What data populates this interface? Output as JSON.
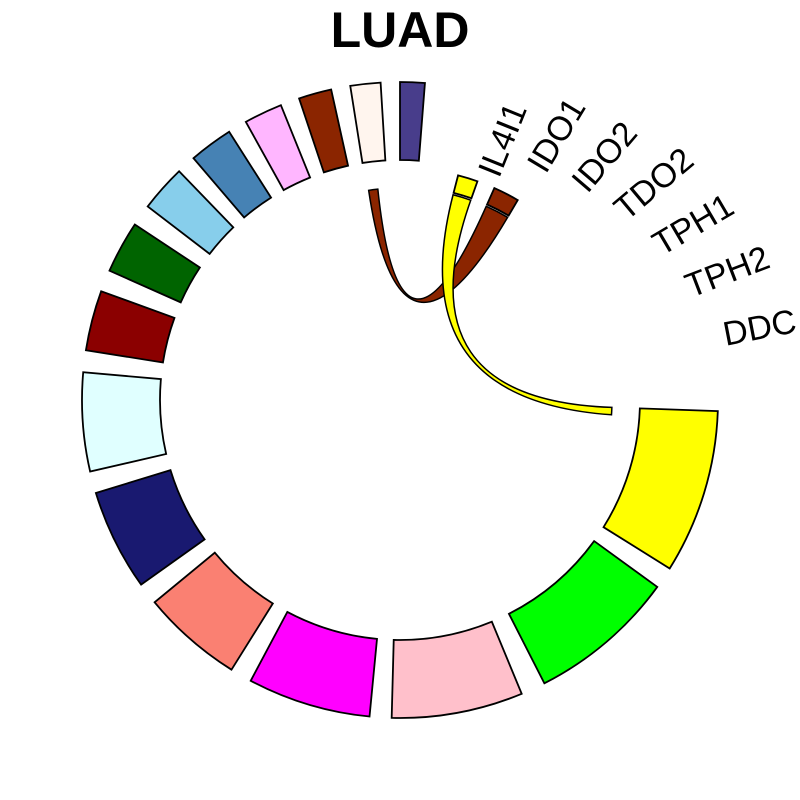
{
  "title": "LUAD",
  "sectors": [
    {
      "label": "",
      "color": "#483D8B"
    },
    {
      "label": "",
      "color": "#FFF5EE"
    },
    {
      "label": "",
      "color": "#8B2500"
    },
    {
      "label": "",
      "color": "#FFB6FF"
    },
    {
      "label": "",
      "color": "#4682B4"
    },
    {
      "label": "",
      "color": "#87CEEB"
    },
    {
      "label": "",
      "color": "#006400"
    },
    {
      "label": "",
      "color": "#8B0000"
    },
    {
      "label": "",
      "color": "#E0FFFF"
    },
    {
      "label": "",
      "color": "#191970"
    },
    {
      "label": "",
      "color": "#FA8072"
    },
    {
      "label": "",
      "color": "#FF00FF"
    },
    {
      "label": "",
      "color": "#FFC0CB"
    },
    {
      "label": "",
      "color": "#00FF00"
    },
    {
      "label": "DDC",
      "color": "#FFFF00"
    },
    {
      "label": "TPH2",
      "color": "#FFFFFF"
    },
    {
      "label": "TPH1",
      "color": "#FFFFFF"
    },
    {
      "label": "TDO2",
      "color": "#FFFFFF"
    },
    {
      "label": "IDO2",
      "color": "#FFFFFF"
    },
    {
      "label": "IDO1",
      "color": "#8B2500"
    },
    {
      "label": "IL4I1",
      "color": "#FFFF00"
    }
  ],
  "links": [
    {
      "from": "IDO1",
      "to": "sector-3",
      "color": "#8B2500"
    },
    {
      "from": "IL4I1",
      "to": "DDC",
      "color": "#FFFF00"
    }
  ]
}
